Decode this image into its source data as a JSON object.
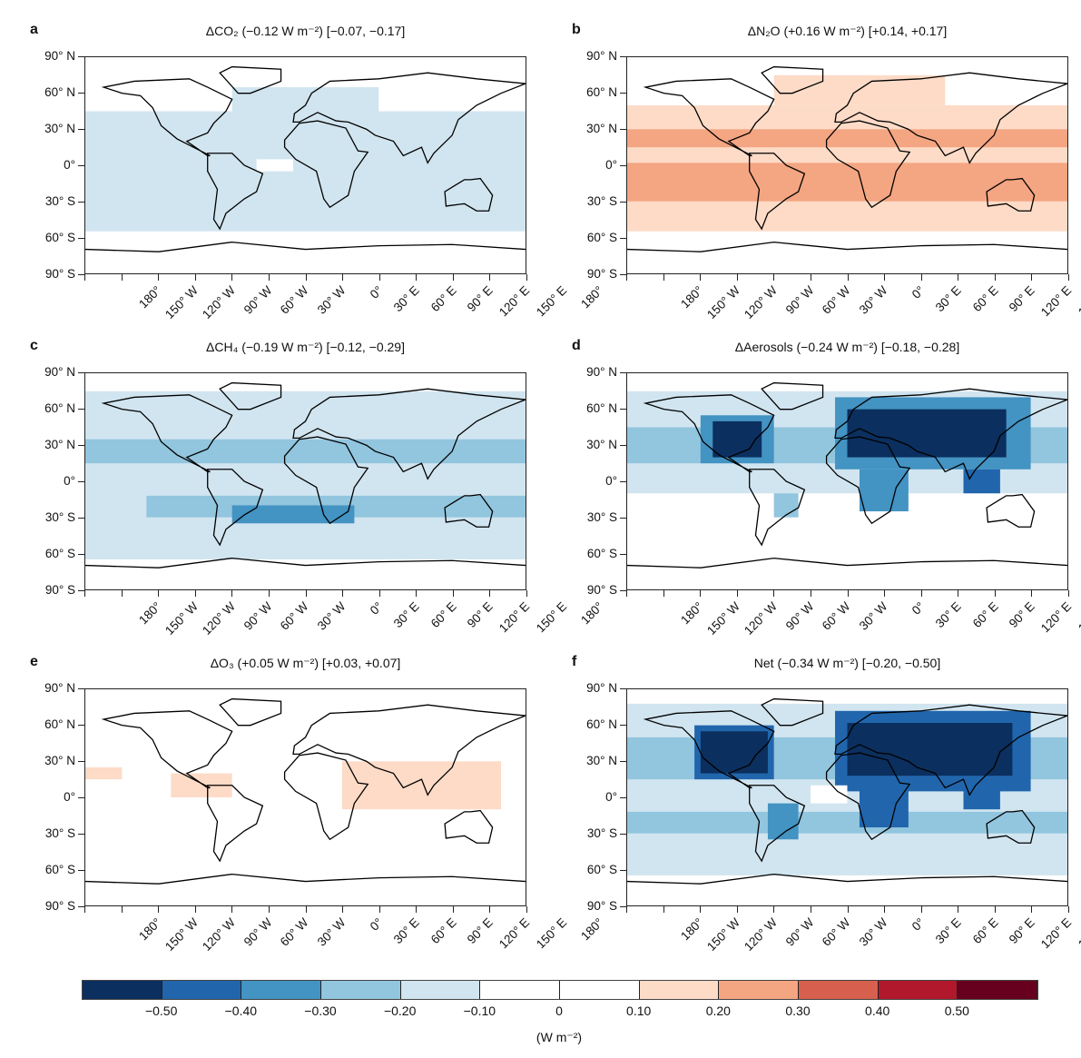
{
  "chart_data": {
    "type": "heatmap",
    "colorbar": {
      "ticks": [
        "−0.50",
        "−0.40",
        "−0.30",
        "−0.20",
        "−0.10",
        "0",
        "0.10",
        "0.20",
        "0.30",
        "0.40",
        "0.50"
      ],
      "bounds": [
        -0.5,
        -0.4,
        -0.3,
        -0.2,
        -0.1,
        0,
        0.1,
        0.2,
        0.3,
        0.4,
        0.5
      ],
      "colors": [
        "#0b2f5e",
        "#2166ac",
        "#4393c3",
        "#92c5de",
        "#d1e5f0",
        "#ffffff",
        "#ffffff",
        "#fddbc7",
        "#f4a582",
        "#d6604d",
        "#b2182b",
        "#67001f"
      ],
      "unit": "(W m⁻²)"
    },
    "y_ticks": [
      "90° N",
      "60° N",
      "30° N",
      "0°",
      "30° S",
      "60° S",
      "90° S"
    ],
    "x_ticks": [
      "180°",
      "150° W",
      "120° W",
      "90° W",
      "60° W",
      "30° W",
      "0°",
      "30° E",
      "60° E",
      "90° E",
      "120° E",
      "150° E",
      "180°"
    ],
    "panels": [
      {
        "letter": "a",
        "title": "ΔCO₂ (−0.12 W m⁻²) [−0.07, −0.17]",
        "cells": [
          [
            -180,
            180,
            45,
            -55,
            -0.15
          ],
          [
            -60,
            60,
            65,
            45,
            -0.15
          ],
          [
            -40,
            -10,
            5,
            -5,
            0
          ]
        ]
      },
      {
        "letter": "b",
        "title": "ΔN₂O (+0.16 W m⁻²) [+0.14, +0.17]",
        "cells": [
          [
            -180,
            180,
            50,
            -55,
            0.15
          ],
          [
            -180,
            180,
            30,
            15,
            0.25
          ],
          [
            -180,
            180,
            2,
            -30,
            0.25
          ],
          [
            -60,
            80,
            75,
            50,
            0.15
          ]
        ]
      },
      {
        "letter": "c",
        "title": "ΔCH₄ (−0.19 W m⁻²) [−0.12, −0.29]",
        "cells": [
          [
            -180,
            180,
            75,
            -65,
            -0.15
          ],
          [
            -180,
            180,
            35,
            15,
            -0.25
          ],
          [
            -130,
            180,
            -12,
            -30,
            -0.25
          ],
          [
            -60,
            40,
            -20,
            -35,
            -0.35
          ]
        ]
      },
      {
        "letter": "d",
        "title": "ΔAerosols (−0.24 W m⁻²) [−0.18, −0.28]",
        "cells": [
          [
            -180,
            180,
            75,
            -10,
            -0.15
          ],
          [
            -180,
            180,
            45,
            15,
            -0.25
          ],
          [
            -120,
            -60,
            55,
            15,
            -0.35
          ],
          [
            -110,
            -70,
            50,
            20,
            -0.55
          ],
          [
            -10,
            150,
            70,
            10,
            -0.35
          ],
          [
            0,
            130,
            60,
            20,
            -0.55
          ],
          [
            10,
            50,
            10,
            -25,
            -0.35
          ],
          [
            -60,
            -40,
            -10,
            -30,
            -0.25
          ],
          [
            95,
            125,
            10,
            -10,
            -0.45
          ]
        ]
      },
      {
        "letter": "e",
        "title": "ΔO₃ (+0.05 W m⁻²) [+0.03, +0.07]",
        "cells": [
          [
            -180,
            -150,
            25,
            15,
            0.15
          ],
          [
            -110,
            -60,
            20,
            0,
            0.15
          ],
          [
            30,
            160,
            30,
            -10,
            0.15
          ]
        ]
      },
      {
        "letter": "f",
        "title": "Net (−0.34 W m⁻²) [−0.20, −0.50]",
        "cells": [
          [
            -180,
            180,
            78,
            -65,
            -0.15
          ],
          [
            -180,
            180,
            50,
            15,
            -0.3
          ],
          [
            -125,
            -60,
            60,
            15,
            -0.45
          ],
          [
            -120,
            -65,
            55,
            20,
            -0.55
          ],
          [
            -10,
            150,
            72,
            5,
            -0.45
          ],
          [
            0,
            135,
            62,
            18,
            -0.55
          ],
          [
            -180,
            180,
            -12,
            -30,
            -0.25
          ],
          [
            10,
            50,
            10,
            -25,
            -0.45
          ],
          [
            -65,
            -40,
            -5,
            -35,
            -0.35
          ],
          [
            95,
            125,
            10,
            -10,
            -0.45
          ],
          [
            -30,
            0,
            10,
            -5,
            0
          ]
        ]
      }
    ]
  }
}
